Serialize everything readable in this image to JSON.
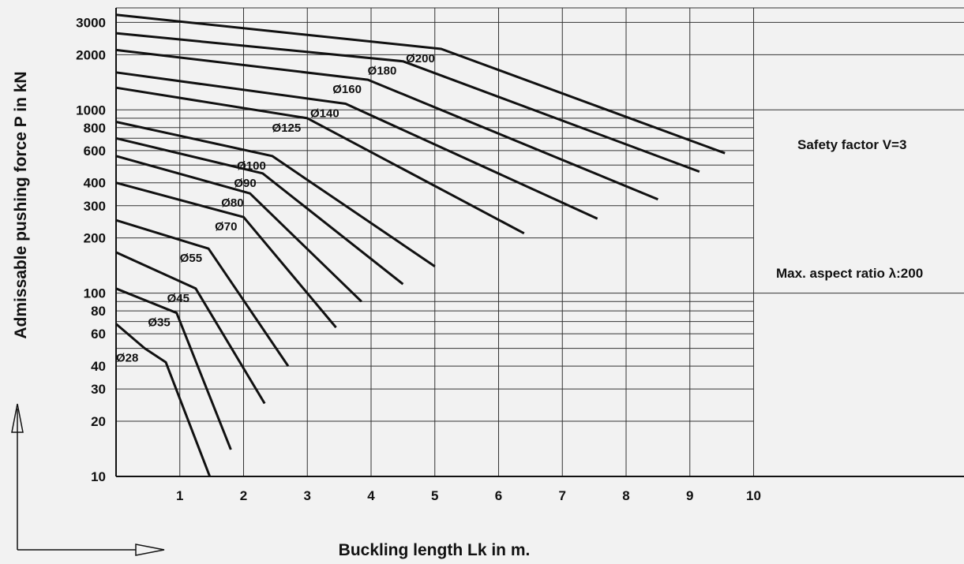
{
  "chart_data": {
    "type": "line",
    "title": "",
    "ylabel": "Admissable pushing force P in kN",
    "xlabel": "Buckling length Lk in m.",
    "y_scale": "log",
    "ylim": [
      10,
      3600
    ],
    "xlim": [
      0,
      13.3
    ],
    "x_ticks": [
      1,
      2,
      3,
      4,
      5,
      6,
      7,
      8,
      9,
      10
    ],
    "y_ticks": [
      10,
      20,
      30,
      40,
      60,
      80,
      100,
      200,
      300,
      400,
      600,
      800,
      1000,
      2000,
      3000
    ],
    "grid": true,
    "annotations": [
      "Safety factor V=3",
      "Max. aspect ratio λ:200"
    ],
    "series": [
      {
        "name": "Ø28",
        "points": [
          [
            0,
            68
          ],
          [
            0.45,
            50
          ],
          [
            0.78,
            42
          ],
          [
            1.47,
            10
          ]
        ]
      },
      {
        "name": "Ø35",
        "points": [
          [
            0,
            106
          ],
          [
            0.95,
            78
          ],
          [
            1.8,
            14
          ]
        ]
      },
      {
        "name": "Ø45",
        "points": [
          [
            0,
            167
          ],
          [
            1.25,
            106
          ],
          [
            2.33,
            25
          ]
        ]
      },
      {
        "name": "Ø55",
        "points": [
          [
            0,
            250
          ],
          [
            1.45,
            175
          ],
          [
            2.7,
            40
          ]
        ]
      },
      {
        "name": "Ø70",
        "points": [
          [
            0,
            400
          ],
          [
            2.0,
            260
          ],
          [
            3.45,
            65
          ]
        ]
      },
      {
        "name": "Ø80",
        "points": [
          [
            0,
            560
          ],
          [
            2.1,
            350
          ],
          [
            3.85,
            90
          ]
        ]
      },
      {
        "name": "Ø90",
        "points": [
          [
            0,
            700
          ],
          [
            2.3,
            450
          ],
          [
            4.5,
            112
          ]
        ]
      },
      {
        "name": "Ø100",
        "points": [
          [
            0,
            860
          ],
          [
            2.45,
            560
          ],
          [
            5.0,
            140
          ]
        ]
      },
      {
        "name": "Ø125",
        "points": [
          [
            0,
            1320
          ],
          [
            3.0,
            900
          ],
          [
            6.4,
            212
          ]
        ]
      },
      {
        "name": "Ø140",
        "points": [
          [
            0,
            1600
          ],
          [
            3.6,
            1080
          ],
          [
            7.55,
            255
          ]
        ]
      },
      {
        "name": "Ø160",
        "points": [
          [
            0,
            2120
          ],
          [
            3.95,
            1460
          ],
          [
            8.5,
            325
          ]
        ]
      },
      {
        "name": "Ø180",
        "points": [
          [
            0,
            2620
          ],
          [
            4.5,
            1840
          ],
          [
            9.15,
            460
          ]
        ]
      },
      {
        "name": "Ø200",
        "points": [
          [
            0,
            3300
          ],
          [
            5.1,
            2150
          ],
          [
            9.55,
            580
          ]
        ]
      }
    ]
  }
}
